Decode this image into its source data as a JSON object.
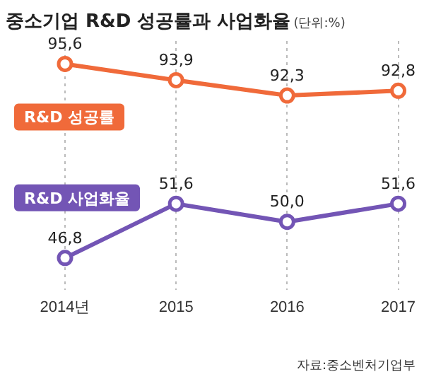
{
  "chart_data": {
    "type": "line",
    "title": "중소기업 R&D 성공률과 사업화율",
    "subtitle": "(단위:%)",
    "categories": [
      "2014년",
      "2015",
      "2016",
      "2017"
    ],
    "series": [
      {
        "name": "R&D 성공률",
        "color": "#f06a3a",
        "values": [
          95.6,
          93.9,
          92.3,
          92.8
        ],
        "value_labels": [
          "95,6",
          "93,9",
          "92,3",
          "92,8"
        ]
      },
      {
        "name": "R&D 사업화율",
        "color": "#7355b5",
        "axis": "y2",
        "values": [
          46.8,
          51.6,
          50.0,
          51.6
        ],
        "value_labels": [
          "46,8",
          "51,6",
          "50,0",
          "51,6"
        ]
      }
    ],
    "ylim": [
      72,
      98
    ],
    "y2lim": [
      44,
      66
    ],
    "annotations": [
      "자료:중소벤처기업부"
    ],
    "grid": "x",
    "legend": false,
    "marker": "circle",
    "line_style": "solid"
  }
}
